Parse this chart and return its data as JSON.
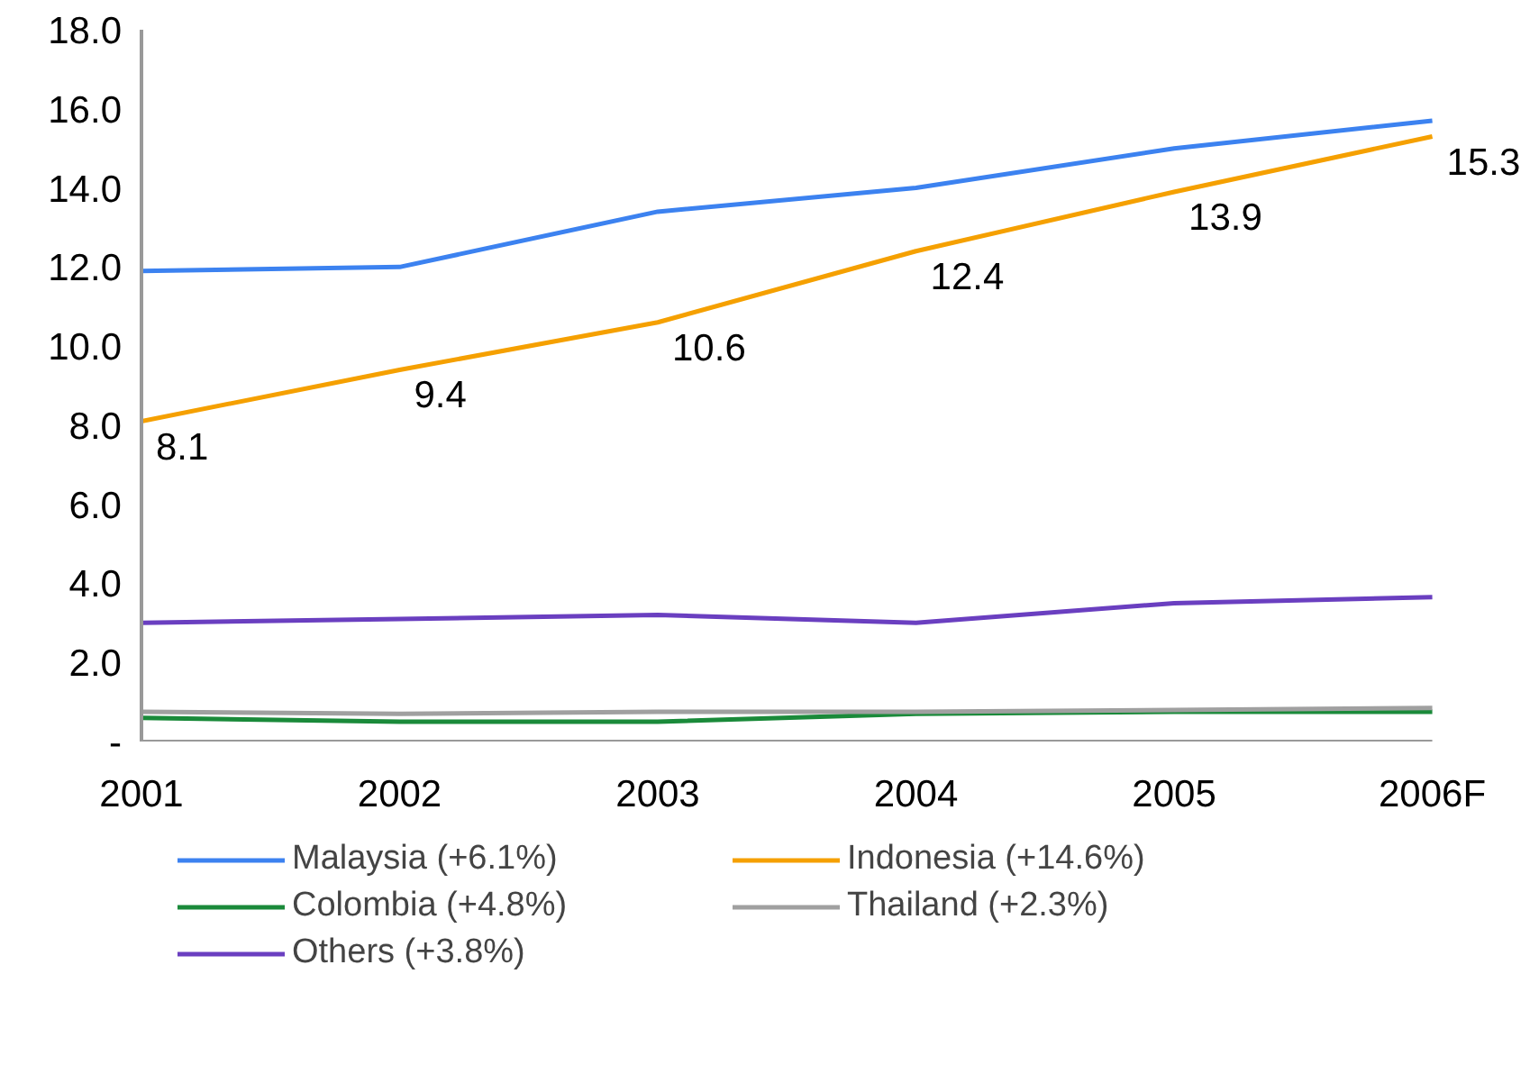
{
  "chart_data": {
    "type": "line",
    "categories": [
      "2001",
      "2002",
      "2003",
      "2004",
      "2005",
      "2006F"
    ],
    "series": [
      {
        "name": "Malaysia (+6.1%)",
        "color": "#3c82f0",
        "values": [
          11.9,
          12.0,
          13.4,
          14.0,
          15.0,
          15.7
        ]
      },
      {
        "name": "Indonesia (+14.6%)",
        "color": "#f5a000",
        "values": [
          8.1,
          9.4,
          10.6,
          12.4,
          13.9,
          15.3
        ],
        "value_labels": [
          "8.1",
          "9.4",
          "10.6",
          "12.4",
          "13.9",
          "15.3"
        ]
      },
      {
        "name": "Colombia (+4.8%)",
        "color": "#1a8a3a",
        "values": [
          0.6,
          0.5,
          0.5,
          0.7,
          0.75,
          0.75
        ]
      },
      {
        "name": "Thailand (+2.3%)",
        "color": "#a0a0a0",
        "values": [
          0.75,
          0.7,
          0.75,
          0.75,
          0.8,
          0.85
        ]
      },
      {
        "name": "Others (+3.8%)",
        "color": "#6a3fc0",
        "values": [
          3.0,
          3.1,
          3.2,
          3.0,
          3.5,
          3.65
        ]
      }
    ],
    "ylim": [
      0,
      18
    ],
    "yticks": [
      {
        "value": 0,
        "label": "-"
      },
      {
        "value": 2,
        "label": "2.0"
      },
      {
        "value": 4,
        "label": "4.0"
      },
      {
        "value": 6,
        "label": "6.0"
      },
      {
        "value": 8,
        "label": "8.0"
      },
      {
        "value": 10,
        "label": "10.0"
      },
      {
        "value": 12,
        "label": "12.0"
      },
      {
        "value": 14,
        "label": "14.0"
      },
      {
        "value": 16,
        "label": "16.0"
      },
      {
        "value": 18,
        "label": "18.0"
      }
    ],
    "grid": false,
    "legend": "bottom",
    "marker": "none",
    "line_style": "solid"
  }
}
